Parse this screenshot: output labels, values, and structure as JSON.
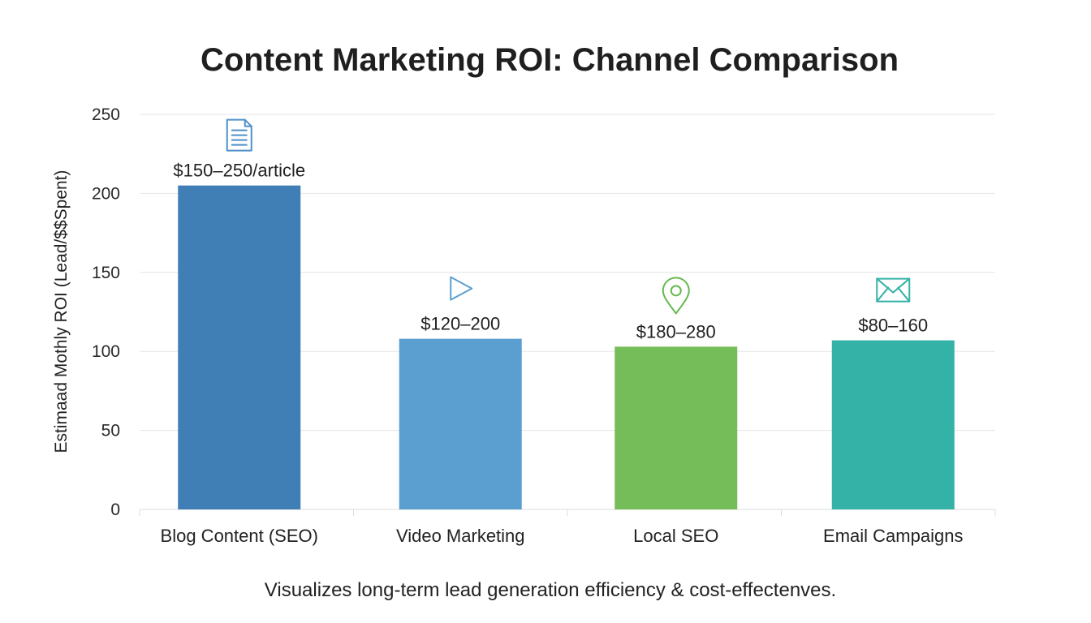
{
  "chart_data": {
    "type": "bar",
    "title": "Content Marketing ROI: Channel Comparison",
    "ylabel": "Estimaad Mothly ROI (Lead/$$Spent)",
    "xlabel": "",
    "caption": "Visualizes long-term lead generation efficiency & cost-effectenves.",
    "ylim": [
      0,
      250
    ],
    "yticks": [
      0,
      50,
      100,
      150,
      200,
      250
    ],
    "grid": true,
    "categories": [
      "Blog Content (SEO)",
      "Video Marketing",
      "Local SEO",
      "Email Campaigns"
    ],
    "values": [
      205,
      108,
      103,
      107
    ],
    "data_labels": [
      "$150–250/article",
      "$120–200",
      "$180–280",
      "$80–160"
    ],
    "icons": [
      "document-icon",
      "play-icon",
      "map-pin-icon",
      "envelope-icon"
    ],
    "colors": [
      "#3f7fb5",
      "#5b9fd0",
      "#75bd58",
      "#35b2a8"
    ],
    "icon_colors": [
      "#4f8fc8",
      "#5b9fd0",
      "#66b84e",
      "#35b2a8"
    ]
  }
}
